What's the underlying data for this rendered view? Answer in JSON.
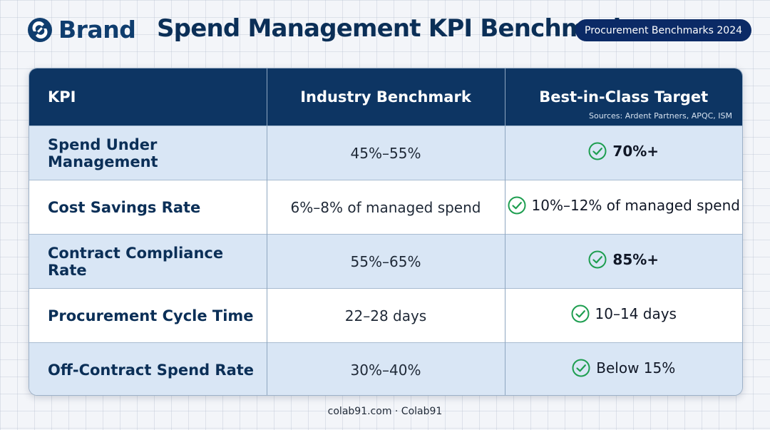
{
  "brand": {
    "name": "Brand",
    "icon": "brand-logo-icon"
  },
  "header": {
    "title": "Spend Management KPI Benchmarks",
    "badge": "Procurement Benchmarks 2024"
  },
  "table": {
    "columns": [
      "KPI",
      "Industry Benchmark",
      "Best-in-Class Target"
    ],
    "sources_note": "Sources: Ardent Partners, APQC, ISM",
    "rows": [
      {
        "kpi": "Spend Under Management",
        "benchmark": "45%–55%",
        "target": "70%+",
        "target_bold": true
      },
      {
        "kpi": "Cost Savings Rate",
        "benchmark": "6%–8% of managed spend",
        "target": "10%–12% of managed spend",
        "target_bold": false
      },
      {
        "kpi": "Contract Compliance Rate",
        "benchmark": "55%–65%",
        "target": "85%+",
        "target_bold": true
      },
      {
        "kpi": "Procurement Cycle Time",
        "benchmark": "22–28 days",
        "target": "10–14 days",
        "target_bold": false
      },
      {
        "kpi": "Off-Contract Spend Rate",
        "benchmark": "30%–40%",
        "target": "Below 15%",
        "target_bold": false
      }
    ],
    "check_icon": "check-circle-icon",
    "check_color": "#1e9e50"
  },
  "footer": {
    "text": "colab91.com · Colab91"
  },
  "colors": {
    "header_bg": "#0d3563",
    "row_shade": "#d9e6f5",
    "badge_bg": "#0b2a66",
    "title_text": "#0b2f57"
  }
}
